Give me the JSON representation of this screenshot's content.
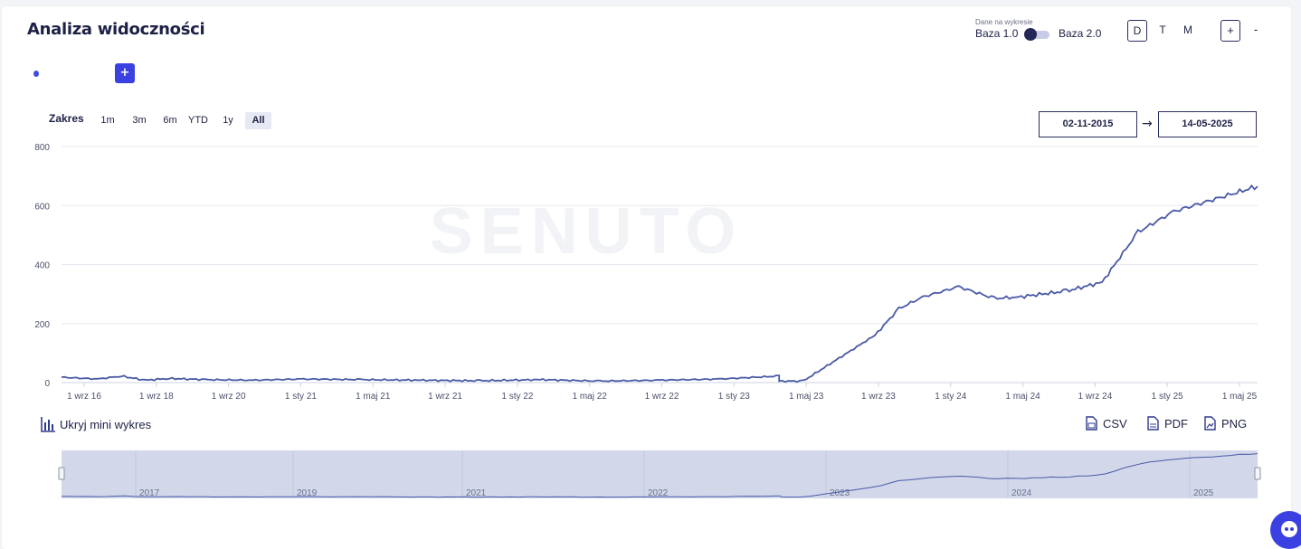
{
  "header": {
    "title": "Analiza widoczności",
    "data_label": "Dane na wykresie",
    "baza1": "Baza 1.0",
    "baza2": "Baza 2.0",
    "periods": [
      "D",
      "T",
      "M"
    ],
    "active_period": "D",
    "zoom_in": "+",
    "zoom_out": "-"
  },
  "add_button": "+",
  "range": {
    "label": "Zakres",
    "options": [
      "1m",
      "3m",
      "6m",
      "YTD",
      "1y",
      "All"
    ],
    "active": "All"
  },
  "dates": {
    "from": "02-11-2015",
    "arrow": "→",
    "to": "14-05-2025"
  },
  "watermark": "SENUTO",
  "mini_chart": {
    "hide_label": "Ukryj mini wykres"
  },
  "export": {
    "csv": "CSV",
    "pdf": "PDF",
    "png": "PNG"
  },
  "colors": {
    "line": "#4a5aa6",
    "accent": "#3b41e0",
    "navigator_fill": "#d2d8ea"
  },
  "chart_data": {
    "type": "line",
    "ylim": [
      0,
      800
    ],
    "yticks": [
      0,
      200,
      400,
      600,
      800
    ],
    "xtick_labels": [
      "1 wrz 16",
      "1 wrz 18",
      "1 wrz 20",
      "1 sty 21",
      "1 maj 21",
      "1 wrz 21",
      "1 sty 22",
      "1 maj 22",
      "1 wrz 22",
      "1 sty 23",
      "1 maj 23",
      "1 wrz 23",
      "1 sty 24",
      "1 maj 24",
      "1 wrz 24",
      "1 sty 25",
      "1 maj 25"
    ],
    "navigator_labels": [
      "2017",
      "2019",
      "2021",
      "2022",
      "2023",
      "2024",
      "2025"
    ],
    "grid": true,
    "series": [
      {
        "x": [
          0,
          0.03,
          0.05,
          0.07,
          0.09,
          0.12,
          0.16,
          0.2,
          0.25,
          0.3,
          0.35,
          0.4,
          0.45,
          0.5,
          0.55,
          0.6,
          0.62,
          0.6,
          0.68,
          0.7,
          0.72,
          0.75,
          0.78,
          0.8,
          0.84,
          0.87,
          0.9,
          0.93,
          1.0
        ],
        "values": [
          18,
          12,
          22,
          8,
          14,
          10,
          8,
          12,
          10,
          8,
          6,
          10,
          5,
          8,
          12,
          22,
          5,
          5,
          160,
          250,
          290,
          325,
          285,
          290,
          310,
          340,
          510,
          580,
          665
        ]
      }
    ]
  }
}
